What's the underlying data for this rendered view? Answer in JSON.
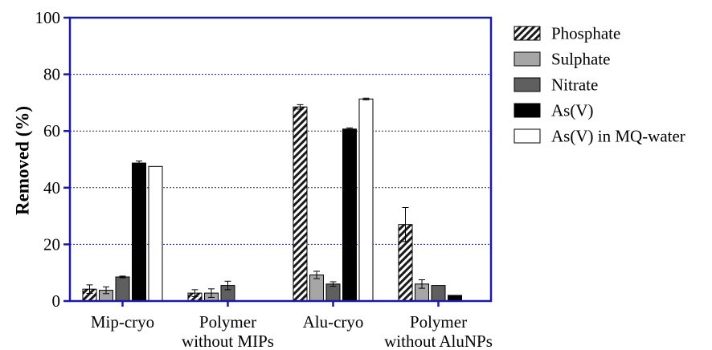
{
  "chart_data": {
    "type": "bar",
    "title": "",
    "xlabel": "",
    "ylabel": "Removed (%)",
    "ylim": [
      0,
      100
    ],
    "yticks": [
      0,
      20,
      40,
      60,
      80,
      100
    ],
    "grid": "horizontal dotted",
    "legend_position": "right",
    "categories": [
      [
        "Mip-cryo"
      ],
      [
        "Polymer",
        "without MIPs"
      ],
      [
        "Alu-cryo"
      ],
      [
        "Polymer",
        "without AluNPs"
      ]
    ],
    "series": [
      {
        "name": "Phosphate",
        "fill": "hatch",
        "color": "#1a1a1a",
        "values": [
          4.2,
          2.8,
          68.5,
          27.0
        ],
        "errors": [
          1.5,
          1.2,
          0.8,
          6.0
        ]
      },
      {
        "name": "Sulphate",
        "fill": "solid",
        "color": "#a6a6a6",
        "values": [
          3.8,
          2.8,
          9.2,
          6.0
        ],
        "errors": [
          1.2,
          1.5,
          1.3,
          1.5
        ]
      },
      {
        "name": "Nitrate",
        "fill": "solid",
        "color": "#5f5f5f",
        "values": [
          8.5,
          5.5,
          6.0,
          5.5
        ],
        "errors": [
          0.3,
          1.5,
          0.8,
          0.0
        ]
      },
      {
        "name": "As(V)",
        "fill": "solid",
        "color": "#000000",
        "values": [
          48.7,
          null,
          60.7,
          2.0
        ],
        "errors": [
          0.7,
          null,
          0.4,
          0.0
        ]
      },
      {
        "name": "As(V) in MQ-water",
        "fill": "solid",
        "color": "#ffffff",
        "values": [
          47.5,
          null,
          71.3,
          null
        ],
        "errors": [
          0.0,
          null,
          0.3,
          null
        ]
      }
    ],
    "colors": {
      "axis": "#1a1aa6",
      "grid": "#1a1aa6"
    }
  }
}
